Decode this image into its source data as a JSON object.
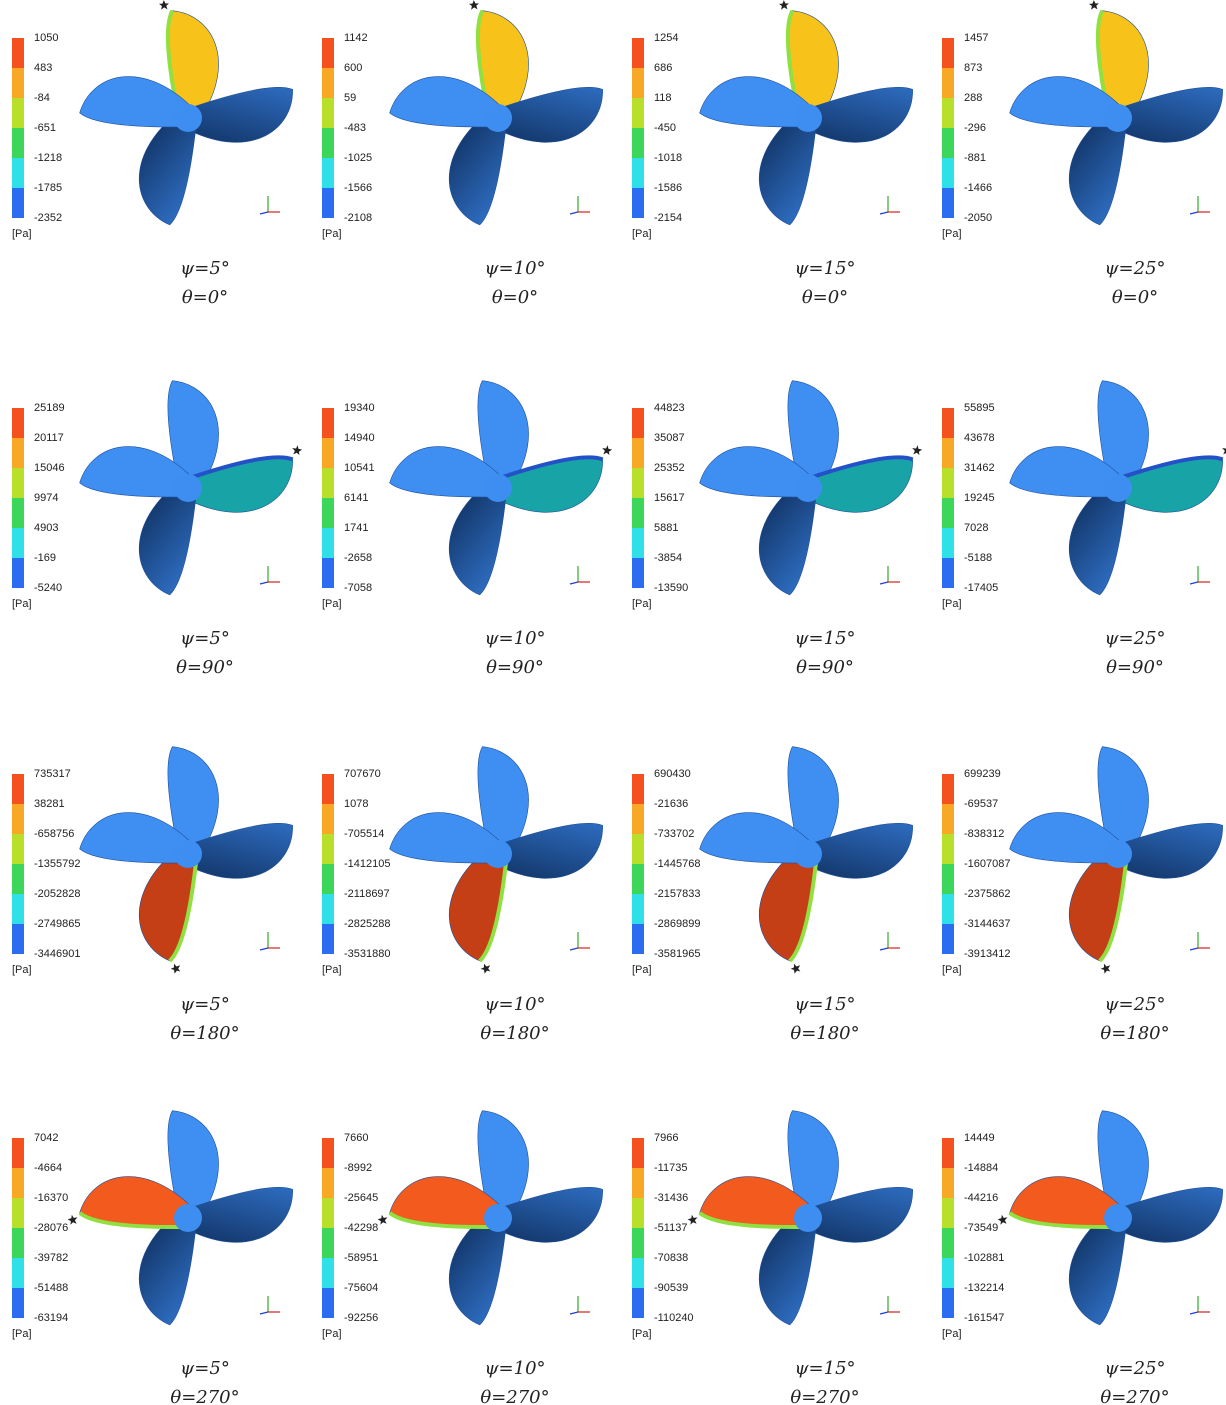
{
  "unit": "[Pa]",
  "panels": [
    {
      "legend": [
        1050,
        483,
        -84,
        -651,
        -1218,
        -1785,
        -2352
      ],
      "psi": "ψ=5°",
      "theta": "θ=0°"
    },
    {
      "legend": [
        1142,
        600,
        59,
        -483,
        -1025,
        -1566,
        -2108
      ],
      "psi": "ψ=10°",
      "theta": "θ=0°"
    },
    {
      "legend": [
        1254,
        686,
        118,
        -450,
        -1018,
        -1586,
        -2154
      ],
      "psi": "ψ=15°",
      "theta": "θ=0°"
    },
    {
      "legend": [
        1457,
        873,
        288,
        -296,
        -881,
        -1466,
        -2050
      ],
      "psi": "ψ=25°",
      "theta": "θ=0°"
    },
    {
      "legend": [
        25189,
        20117,
        15046,
        9974,
        4903,
        -169,
        -5240
      ],
      "psi": "ψ=5°",
      "theta": "θ=90°"
    },
    {
      "legend": [
        19340,
        14940,
        10541,
        6141,
        1741,
        -2658,
        -7058
      ],
      "psi": "ψ=10°",
      "theta": "θ=90°"
    },
    {
      "legend": [
        44823,
        35087,
        25352,
        15617,
        5881,
        -3854,
        -13590
      ],
      "psi": "ψ=15°",
      "theta": "θ=90°"
    },
    {
      "legend": [
        55895,
        43678,
        31462,
        19245,
        7028,
        -5188,
        -17405
      ],
      "psi": "ψ=25°",
      "theta": "θ=90°"
    },
    {
      "legend": [
        735317,
        38281,
        -658756,
        -1355792,
        -2052828,
        -2749865,
        -3446901
      ],
      "psi": "ψ=5°",
      "theta": "θ=180°"
    },
    {
      "legend": [
        707670,
        1078,
        -705514,
        -1412105,
        -2118697,
        -2825288,
        -3531880
      ],
      "psi": "ψ=10°",
      "theta": "θ=180°"
    },
    {
      "legend": [
        690430,
        -21636,
        -733702,
        -1445768,
        -2157833,
        -2869899,
        -3581965
      ],
      "psi": "ψ=15°",
      "theta": "θ=180°"
    },
    {
      "legend": [
        699239,
        -69537,
        -838312,
        -1607087,
        -2375862,
        -3144637,
        -3913412
      ],
      "psi": "ψ=25°",
      "theta": "θ=180°"
    },
    {
      "legend": [
        7042,
        -4664,
        -16370,
        -28076,
        -39782,
        -51488,
        -63194
      ],
      "psi": "ψ=5°",
      "theta": "θ=270°"
    },
    {
      "legend": [
        7660,
        -8992,
        -25645,
        -42298,
        -58951,
        -75604,
        -92256
      ],
      "psi": "ψ=10°",
      "theta": "θ=270°"
    },
    {
      "legend": [
        7966,
        -11735,
        -31436,
        -51137,
        -70838,
        -90539,
        -110240
      ],
      "psi": "ψ=15°",
      "theta": "θ=270°"
    },
    {
      "legend": [
        14449,
        -14884,
        -44216,
        -73549,
        -102881,
        -132214,
        -161547
      ],
      "psi": "ψ=25°",
      "theta": "θ=270°"
    }
  ]
}
